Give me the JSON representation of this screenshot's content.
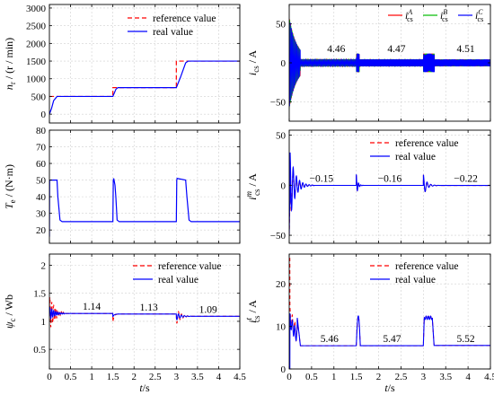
{
  "colors": {
    "reference": "#ff0000",
    "real": "#0000ff",
    "phaseA": "#ff0000",
    "phaseB": "#00bb00",
    "phaseC": "#0000ff",
    "axis": "#000000",
    "grid": "#d0d0d0"
  },
  "chart_data": [
    {
      "id": "speed",
      "type": "line",
      "ylabel": "n_r / (r / min)",
      "xlim": [
        0,
        4.5
      ],
      "ylim": [
        -250,
        3100
      ],
      "yticks": [
        0,
        500,
        1000,
        1500,
        2000,
        2500,
        3000
      ],
      "xticks": [
        0,
        0.5,
        1,
        1.5,
        2,
        2.5,
        3,
        3.5,
        4,
        4.5
      ],
      "xtick_labels_visible": false,
      "grid": true,
      "legend": "top-right",
      "series": [
        {
          "name": "reference value",
          "style": "dashed",
          "color_key": "reference",
          "x": [
            0,
            1.5,
            1.5,
            3.0,
            3.0,
            4.5
          ],
          "y": [
            500,
            500,
            750,
            750,
            1500,
            1500
          ]
        },
        {
          "name": "real value",
          "style": "solid",
          "color_key": "real",
          "x": [
            0,
            0.05,
            0.1,
            0.18,
            0.25,
            1.5,
            1.57,
            1.62,
            3.0,
            3.1,
            3.22,
            3.28,
            4.5
          ],
          "y": [
            0,
            160,
            380,
            500,
            500,
            500,
            700,
            750,
            750,
            1050,
            1450,
            1500,
            1500
          ]
        }
      ]
    },
    {
      "id": "phase-currents",
      "type": "line",
      "ylabel": "i_cs / A",
      "xlim": [
        0,
        4.5
      ],
      "ylim": [
        -75,
        75
      ],
      "yticks": [
        -50,
        0,
        50
      ],
      "xticks": [
        0,
        0.5,
        1,
        1.5,
        2,
        2.5,
        3,
        3.5,
        4,
        4.5
      ],
      "xtick_labels_visible": false,
      "grid": true,
      "legend": "top-right",
      "legend_labels": [
        "i_cs^A",
        "i_cs^B",
        "i_cs^C"
      ],
      "segments": [
        {
          "x0": 0.25,
          "x1": 1.5,
          "amp": 4.46,
          "label": "4.46",
          "label_x": 1.05
        },
        {
          "x0": 1.57,
          "x1": 3.0,
          "amp": 4.47,
          "label": "4.47",
          "label_x": 2.4
        },
        {
          "x0": 3.25,
          "x1": 4.5,
          "amp": 4.51,
          "label": "4.51",
          "label_x": 3.95
        }
      ]
    },
    {
      "id": "torque",
      "type": "line",
      "ylabel": "T_e / (N·m)",
      "xlim": [
        0,
        4.5
      ],
      "ylim": [
        12,
        80
      ],
      "yticks": [
        20,
        30,
        40,
        50,
        60,
        70,
        80
      ],
      "xticks": [
        0,
        0.5,
        1,
        1.5,
        2,
        2.5,
        3,
        3.5,
        4,
        4.5
      ],
      "xtick_labels_visible": false,
      "grid": true,
      "series": [
        {
          "name": "real value",
          "style": "solid",
          "color_key": "real",
          "x": [
            0,
            0.005,
            0.01,
            0.18,
            0.2,
            0.25,
            0.3,
            1.5,
            1.51,
            1.52,
            1.55,
            1.57,
            1.6,
            1.65,
            3.0,
            3.01,
            3.02,
            3.22,
            3.25,
            3.3,
            3.35,
            4.5
          ],
          "y": [
            16,
            50,
            50,
            50,
            40,
            26,
            25,
            25,
            50,
            51,
            47,
            40,
            26,
            25,
            25,
            50,
            51,
            50,
            40,
            26,
            25,
            25
          ]
        }
      ]
    },
    {
      "id": "m-current",
      "type": "line",
      "ylabel": "i_cs^m / A",
      "xlim": [
        0,
        4.5
      ],
      "ylim": [
        -58,
        55
      ],
      "yticks": [
        -50,
        0,
        50
      ],
      "xticks": [
        0,
        0.5,
        1,
        1.5,
        2,
        2.5,
        3,
        3.5,
        4,
        4.5
      ],
      "xtick_labels_visible": false,
      "grid": true,
      "legend": "top-right",
      "segment_values": [
        {
          "label": "−0.15",
          "x": 0.72,
          "y": -0.15
        },
        {
          "label": "−0.16",
          "x": 2.25,
          "y": -0.16
        },
        {
          "label": "−0.22",
          "x": 3.95,
          "y": -0.22
        }
      ],
      "series": [
        {
          "name": "reference value",
          "style": "dashed",
          "color_key": "reference"
        },
        {
          "name": "real value",
          "style": "solid",
          "color_key": "real"
        }
      ]
    },
    {
      "id": "flux",
      "type": "line",
      "ylabel": "ψ_c / Wb",
      "xlabel": "t/s",
      "xlim": [
        0,
        4.5
      ],
      "ylim": [
        0.15,
        2.2
      ],
      "yticks": [
        0.5,
        1,
        1.5,
        2
      ],
      "ytick_labels": [
        "0.5",
        "1",
        "1.5",
        "2"
      ],
      "xticks": [
        0,
        0.5,
        1,
        1.5,
        2,
        2.5,
        3,
        3.5,
        4,
        4.5
      ],
      "grid": true,
      "legend": "top-right",
      "segment_values": [
        {
          "label": "1.14",
          "x": 1.0,
          "y": 1.14
        },
        {
          "label": "1.13",
          "x": 2.35,
          "y": 1.13
        },
        {
          "label": "1.09",
          "x": 3.75,
          "y": 1.09
        }
      ],
      "series": [
        {
          "name": "reference value",
          "style": "dashed",
          "color_key": "reference"
        },
        {
          "name": "real value",
          "style": "solid",
          "color_key": "real"
        }
      ]
    },
    {
      "id": "t-current",
      "type": "line",
      "ylabel": "i_cs^t / A",
      "xlabel": "t/s",
      "xlim": [
        0,
        4.5
      ],
      "ylim": [
        0,
        27
      ],
      "yticks": [
        0,
        10,
        20
      ],
      "xticks": [
        0,
        0.5,
        1,
        1.5,
        2,
        2.5,
        3,
        3.5,
        4,
        4.5
      ],
      "grid": true,
      "legend": "top-right",
      "segment_values": [
        {
          "label": "5.46",
          "x": 0.9,
          "y": 5.46
        },
        {
          "label": "5.47",
          "x": 2.3,
          "y": 5.47
        },
        {
          "label": "5.52",
          "x": 3.95,
          "y": 5.52
        }
      ],
      "series": [
        {
          "name": "reference value",
          "style": "dashed",
          "color_key": "reference"
        },
        {
          "name": "real value",
          "style": "solid",
          "color_key": "real"
        }
      ]
    }
  ]
}
